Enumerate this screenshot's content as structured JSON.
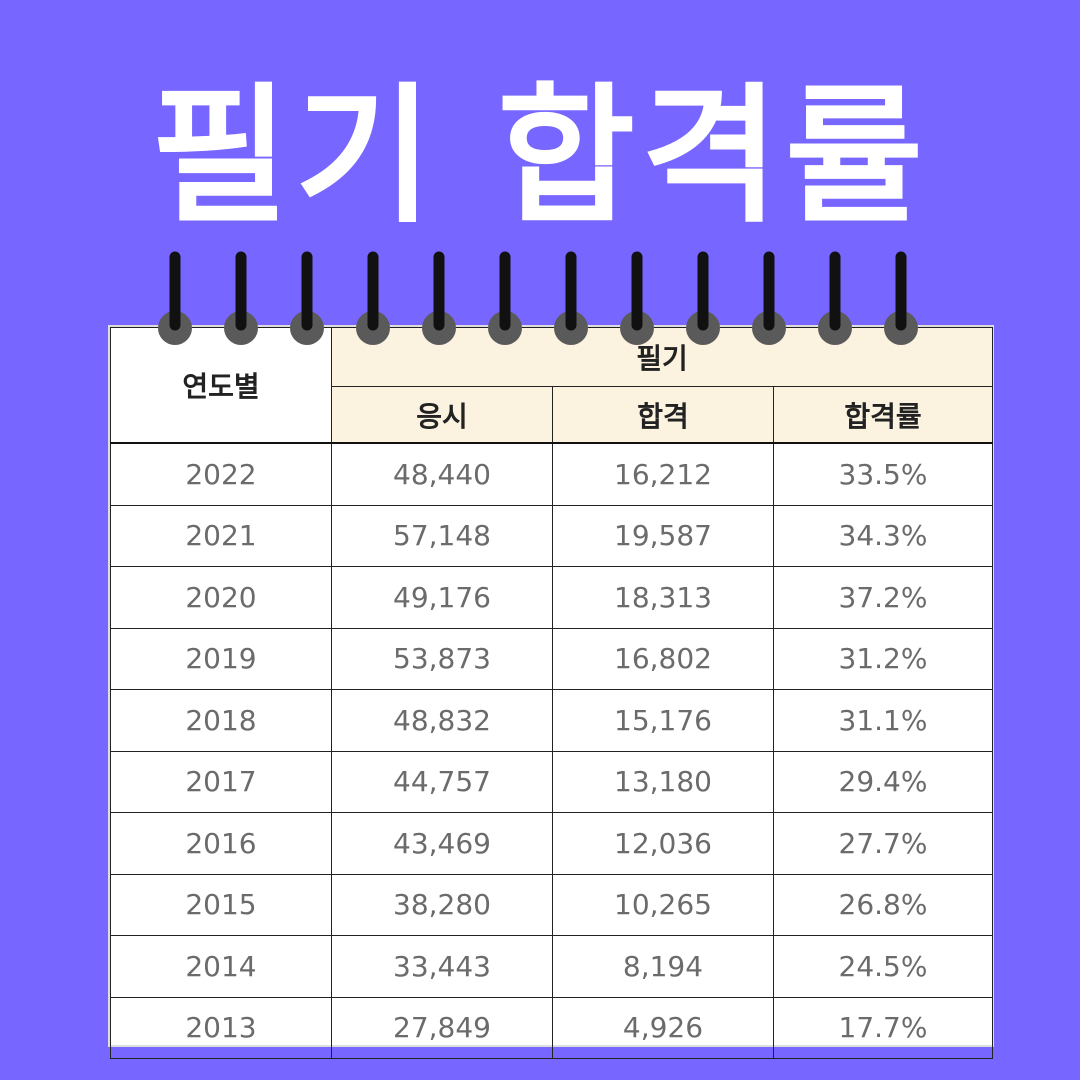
{
  "title": "필기 합격률",
  "colors": {
    "background": "#7766ff",
    "header_fill": "#fbf2df",
    "title_text": "#ffffff",
    "cell_text": "#6b6b6b"
  },
  "table": {
    "year_header": "연도별",
    "group_header": "필기",
    "sub_headers": [
      "응시",
      "합격",
      "합격률"
    ],
    "rows": [
      [
        "2022",
        "48,440",
        "16,212",
        "33.5%"
      ],
      [
        "2021",
        "57,148",
        "19,587",
        "34.3%"
      ],
      [
        "2020",
        "49,176",
        "18,313",
        "37.2%"
      ],
      [
        "2019",
        "53,873",
        "16,802",
        "31.2%"
      ],
      [
        "2018",
        "48,832",
        "15,176",
        "31.1%"
      ],
      [
        "2017",
        "44,757",
        "13,180",
        "29.4%"
      ],
      [
        "2016",
        "43,469",
        "12,036",
        "27.7%"
      ],
      [
        "2015",
        "38,280",
        "10,265",
        "26.8%"
      ],
      [
        "2014",
        "33,443",
        "8,194",
        "24.5%"
      ],
      [
        "2013",
        "27,849",
        "4,926",
        "17.7%"
      ]
    ]
  },
  "chart_data": {
    "type": "table",
    "columns": [
      "연도별",
      "응시",
      "합격",
      "합격률"
    ],
    "rows": [
      [
        "2022",
        "48,440",
        "16,212",
        "33.5%"
      ],
      [
        "2021",
        "57,148",
        "19,587",
        "34.3%"
      ],
      [
        "2020",
        "49,176",
        "18,313",
        "37.2%"
      ],
      [
        "2019",
        "53,873",
        "16,802",
        "31.2%"
      ],
      [
        "2018",
        "48,832",
        "15,176",
        "31.1%"
      ],
      [
        "2017",
        "44,757",
        "13,180",
        "29.4%"
      ],
      [
        "2016",
        "43,469",
        "12,036",
        "27.7%"
      ],
      [
        "2015",
        "38,280",
        "10,265",
        "26.8%"
      ],
      [
        "2014",
        "33,443",
        "8,194",
        "24.5%"
      ],
      [
        "2013",
        "27,849",
        "4,926",
        "17.7%"
      ]
    ]
  }
}
